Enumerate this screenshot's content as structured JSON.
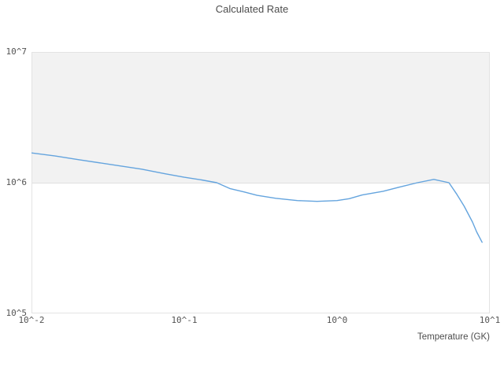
{
  "page": {
    "background": "#ffffff"
  },
  "chart_data": {
    "type": "line",
    "title": "Calculated Rate",
    "xlabel": "Temperature (GK)",
    "ylabel": "",
    "x_scale": "log",
    "y_scale": "log",
    "xlim": [
      0.01,
      10
    ],
    "ylim": [
      100000,
      10000000
    ],
    "x_ticks": [
      "10^-2",
      "10^-1",
      "10^0",
      "10^1"
    ],
    "y_ticks": [
      "10^7",
      "10^6",
      "10^5"
    ],
    "legend": "none",
    "grid": "single horizontal gridline at 10^6; decade band 10^6-10^7 shaded light gray",
    "series": [
      {
        "name": "calculated-rate",
        "x": [
          0.01,
          0.0143,
          0.0204,
          0.0328,
          0.0526,
          0.075,
          0.1,
          0.13,
          0.163,
          0.2,
          0.246,
          0.3,
          0.397,
          0.55,
          0.74,
          1.0,
          1.2,
          1.46,
          2.0,
          2.66,
          3.36,
          4.3,
          5.4,
          6.1,
          6.8,
          7.7,
          8.2,
          8.9
        ],
        "y": [
          1690000,
          1600000,
          1500000,
          1380000,
          1270000,
          1170000,
          1100000,
          1050000,
          1000000,
          900000,
          850000,
          800000,
          760000,
          730000,
          720000,
          730000,
          755000,
          805000,
          860000,
          935000,
          1000000,
          1060000,
          1000000,
          810000,
          660000,
          500000,
          420000,
          350000
        ]
      }
    ],
    "colors": {
      "line": "#64a4de",
      "band_fill": "#f2f2f2",
      "gridline": "#dfdfdf",
      "plot_border": "#e3e3e3",
      "text": "#545454"
    }
  }
}
